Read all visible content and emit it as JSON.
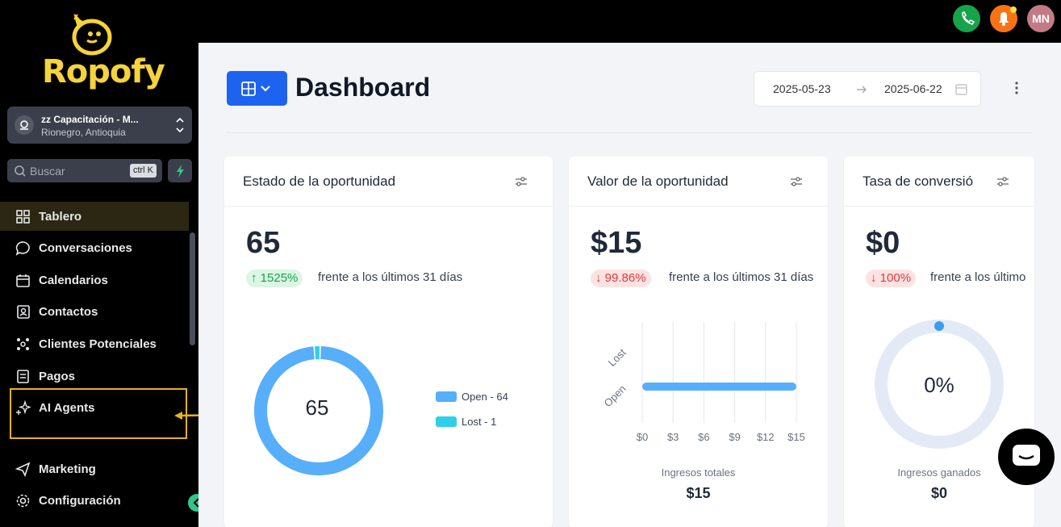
{
  "brand": {
    "name": "Ropofy",
    "color": "#f5d33b"
  },
  "location": {
    "name": "zz Capacitación - M...",
    "sub": "Rionegro, Antioquia"
  },
  "search": {
    "placeholder": "Buscar",
    "shortcut": "ctrl K"
  },
  "sidebar": {
    "items": [
      {
        "label": "Tablero",
        "icon": "dashboard-icon",
        "active": true
      },
      {
        "label": "Conversaciones",
        "icon": "chat-icon"
      },
      {
        "label": "Calendarios",
        "icon": "calendar-icon"
      },
      {
        "label": "Contactos",
        "icon": "contacts-icon"
      },
      {
        "label": "Clientes Potenciales",
        "icon": "leads-icon"
      },
      {
        "label": "Pagos",
        "icon": "payments-icon"
      },
      {
        "label": "AI Agents",
        "icon": "sparkle-icon",
        "highlighted": true
      },
      {
        "label": "Marketing",
        "icon": "send-icon"
      },
      {
        "label": "Configuración",
        "icon": "gear-icon"
      }
    ]
  },
  "topbar": {
    "avatar_initials": "MN"
  },
  "page": {
    "title": "Dashboard",
    "date_from": "2025-05-23",
    "date_to": "2025-06-22"
  },
  "cards": {
    "estado": {
      "title": "Estado de la oportunidad",
      "value": "65",
      "change": "↑ 1525%",
      "compare": "frente a los últimos 31 días",
      "donut_center": "65",
      "legend": [
        "Open - 64",
        "Lost - 1"
      ]
    },
    "valor": {
      "title": "Valor de la oportunidad",
      "value": "$15",
      "change": "↓ 99.86%",
      "compare": "frente a los últimos 31 días",
      "footer_label": "Ingresos totales",
      "footer_value": "$15"
    },
    "tasa": {
      "title": "Tasa de conversió",
      "value": "$0",
      "change": "↓ 100%",
      "compare": "frente a los último",
      "gauge_center": "0%",
      "footer_label": "Ingresos ganados",
      "footer_value": "$0"
    }
  },
  "chart_data": [
    {
      "type": "pie",
      "categories": [
        "Open",
        "Lost"
      ],
      "values": [
        64,
        1
      ],
      "colors": [
        "#57aefa",
        "#2fcfe8"
      ],
      "center_label": "65"
    },
    {
      "type": "bar",
      "orientation": "horizontal",
      "categories": [
        "Lost",
        "Open"
      ],
      "values": [
        0,
        15
      ],
      "x_ticks": [
        "$0",
        "$3",
        "$6",
        "$9",
        "$12",
        "$15"
      ],
      "xlim": [
        0,
        15
      ],
      "xlabel": "Ingresos totales",
      "color": "#57aefa"
    },
    {
      "type": "pie",
      "categories": [
        "Ganado"
      ],
      "values": [
        0
      ],
      "center_label": "0%"
    }
  ]
}
